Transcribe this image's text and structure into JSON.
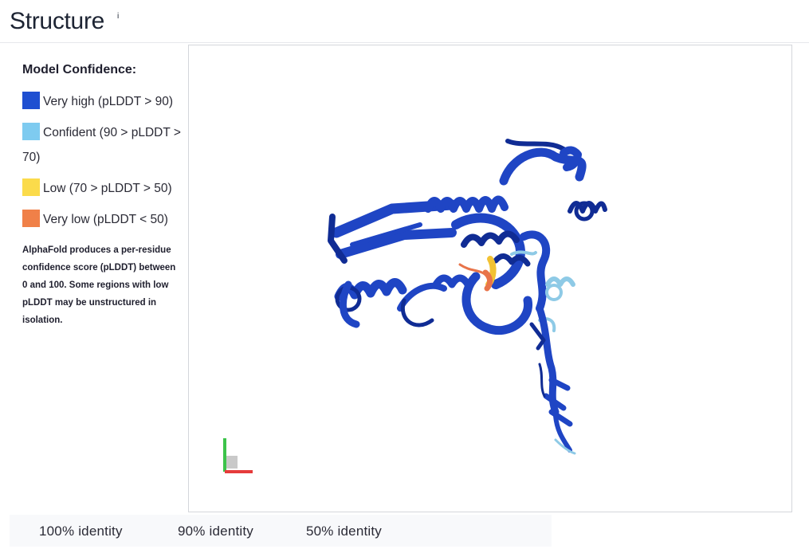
{
  "header": {
    "title": "Structure",
    "info": "i"
  },
  "legend": {
    "heading": "Model Confidence:",
    "items": [
      {
        "label": "Very high (pLDDT > 90)",
        "color": "#1f4fd1"
      },
      {
        "label": "Confident (90 > pLDDT > 70)",
        "color": "#7ecbf0"
      },
      {
        "label": "Low (70 > pLDDT > 50)",
        "color": "#fbdb4b"
      },
      {
        "label": "Very low (pLDDT < 50)",
        "color": "#f08048"
      }
    ],
    "note": "AlphaFold produces a per-residue confidence score (pLDDT) between 0 and 100. Some regions with low pLDDT may be unstructured in isolation."
  },
  "viewer": {
    "structure_colors": {
      "main": "#1f45c4",
      "dark": "#102c94",
      "confident": "#8ecae6",
      "low": "#f2c233",
      "very_low": "#e8744a"
    },
    "axes_colors": {
      "x": "#e53b3b",
      "y": "#3cc34a",
      "z": "#2a4bd8"
    }
  },
  "footer": {
    "tabs": [
      {
        "label": "100% identity"
      },
      {
        "label": "90% identity"
      },
      {
        "label": "50% identity"
      }
    ]
  }
}
